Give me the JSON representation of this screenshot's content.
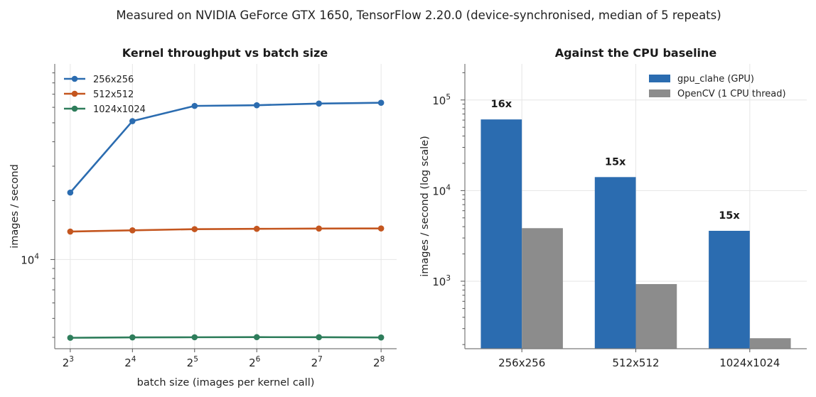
{
  "figure": {
    "suptitle": "Measured on NVIDIA GeForce GTX 1650, TensorFlow 2.20.0 (device-synchronised, median of 5 repeats)"
  },
  "chart_data": [
    {
      "type": "line",
      "title": "Kernel throughput vs batch size",
      "xlabel": "batch size (images per kernel call)",
      "ylabel": "images / second",
      "xscale": "log2",
      "yscale": "log",
      "ylim": [
        3500,
        100000
      ],
      "grid": true,
      "legend_position": "top-left",
      "x": [
        8,
        16,
        32,
        64,
        128,
        256
      ],
      "x_tick_labels": [
        {
          "base": "2",
          "exp": "3"
        },
        {
          "base": "2",
          "exp": "4"
        },
        {
          "base": "2",
          "exp": "5"
        },
        {
          "base": "2",
          "exp": "6"
        },
        {
          "base": "2",
          "exp": "7"
        },
        {
          "base": "2",
          "exp": "8"
        }
      ],
      "y_tick_labels": [
        {
          "value": 10000,
          "base": "10",
          "exp": "4"
        }
      ],
      "y_minor_ticks": [
        4000,
        5000,
        6000,
        7000,
        8000,
        9000,
        20000,
        30000,
        40000,
        50000,
        60000,
        70000,
        80000,
        90000
      ],
      "series": [
        {
          "name": "256x256",
          "color": "#2b6cb0",
          "values": [
            22000,
            51000,
            61000,
            61500,
            62700,
            63300
          ]
        },
        {
          "name": "512x512",
          "color": "#c4561f",
          "values": [
            13900,
            14100,
            14300,
            14350,
            14400,
            14420
          ]
        },
        {
          "name": "1024x1024",
          "color": "#2e7d5b",
          "values": [
            3980,
            4000,
            4005,
            4010,
            4008,
            3995
          ]
        }
      ]
    },
    {
      "type": "bar",
      "title": "Against the CPU baseline",
      "xlabel": "",
      "ylabel": "images / second  (log scale)",
      "yscale": "log",
      "ylim": [
        180,
        250000
      ],
      "grid": true,
      "legend_position": "top-right",
      "categories": [
        "256x256",
        "512x512",
        "1024x1024"
      ],
      "y_tick_labels": [
        {
          "value": 1000,
          "base": "10",
          "exp": "3"
        },
        {
          "value": 10000,
          "base": "10",
          "exp": "4"
        },
        {
          "value": 100000,
          "base": "10",
          "exp": "5"
        }
      ],
      "y_minor_ticks": [
        200,
        300,
        400,
        500,
        600,
        700,
        800,
        900,
        2000,
        3000,
        4000,
        5000,
        6000,
        7000,
        8000,
        9000,
        20000,
        30000,
        40000,
        50000,
        60000,
        70000,
        80000,
        90000,
        200000
      ],
      "series": [
        {
          "name": "gpu_clahe (GPU)",
          "color": "#2b6cb0",
          "values": [
            61000,
            14100,
            3600
          ]
        },
        {
          "name": "OpenCV (1 CPU thread)",
          "color": "#8c8c8c",
          "values": [
            3850,
            930,
            235
          ]
        }
      ],
      "annotations": [
        "16x",
        "15x",
        "15x"
      ]
    }
  ]
}
